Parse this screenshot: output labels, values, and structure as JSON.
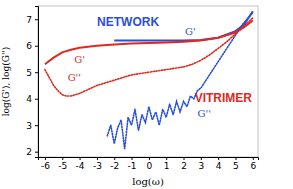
{
  "chart_data": {
    "type": "line",
    "x_label": "log(ω)",
    "y_label": "log(G'), log(G'')",
    "xlim": [
      -6.4,
      6.3
    ],
    "ylim": [
      1.8,
      7.5
    ],
    "xticks": [
      -6,
      -5,
      -4,
      -3,
      -2,
      -1,
      0,
      1,
      2,
      3,
      4,
      5,
      6
    ],
    "yticks": [
      2,
      3,
      4,
      5,
      6,
      7
    ],
    "series": [
      {
        "color": "#2b4fd8",
        "line_style": "solid",
        "x": [
          -2,
          -1,
          0,
          1,
          2,
          3,
          4,
          5,
          5.5,
          6
        ],
        "values": [
          6.2,
          6.2,
          6.2,
          6.2,
          6.2,
          6.22,
          6.3,
          6.55,
          6.8,
          7.3
        ]
      },
      {
        "color": "#2b4fd8",
        "line_style": "dotted",
        "x": [
          -2.4,
          -2.2,
          -2,
          -1.8,
          -1.6,
          -1.4,
          -1.2,
          -1,
          -0.8,
          -0.6,
          -0.4,
          -0.2,
          0,
          0.2,
          0.4,
          0.6,
          0.8,
          1,
          1.2,
          1.4,
          1.6,
          1.8,
          2,
          2.2,
          2.4,
          2.6,
          2.8,
          3,
          3.2,
          3.4,
          3.6,
          3.8,
          4,
          4.2,
          4.4,
          4.6,
          4.8,
          5,
          5.2,
          5.4,
          5.6,
          5.8,
          6
        ],
        "values": [
          2.6,
          3.0,
          2.3,
          2.9,
          3.2,
          2.1,
          3.3,
          3.0,
          3.6,
          2.8,
          3.4,
          3.1,
          3.7,
          3.2,
          3.5,
          3.0,
          3.6,
          3.3,
          3.8,
          3.4,
          3.9,
          3.5,
          3.9,
          3.7,
          4.1,
          4.0,
          4.3,
          4.4,
          4.6,
          4.8,
          5.0,
          5.2,
          5.4,
          5.6,
          5.8,
          6.0,
          6.2,
          6.4,
          6.6,
          6.8,
          6.95,
          7.1,
          7.25
        ]
      },
      {
        "color": "#e0281e",
        "line_style": "solid",
        "x": [
          -6,
          -5.5,
          -5,
          -4.5,
          -4,
          -3,
          -2,
          -1,
          0,
          1,
          2,
          3,
          4,
          5,
          5.5,
          6
        ],
        "values": [
          5.3,
          5.55,
          5.75,
          5.85,
          5.92,
          6.0,
          6.05,
          6.08,
          6.1,
          6.12,
          6.15,
          6.2,
          6.3,
          6.5,
          6.7,
          6.95
        ]
      },
      {
        "color": "#e0281e",
        "line_style": "dotted",
        "x": [
          -6,
          -5.75,
          -5.5,
          -5.25,
          -5,
          -4.75,
          -4.5,
          -4.25,
          -4,
          -3.5,
          -3,
          -2.5,
          -2,
          -1.5,
          -1,
          -0.5,
          0,
          0.5,
          1,
          1.5,
          2,
          2.5,
          3,
          3.5,
          4,
          4.5,
          5,
          5.5,
          6
        ],
        "values": [
          5.1,
          4.8,
          4.5,
          4.3,
          4.15,
          4.1,
          4.1,
          4.15,
          4.2,
          4.35,
          4.5,
          4.6,
          4.7,
          4.8,
          4.9,
          4.95,
          5.0,
          5.05,
          5.1,
          5.15,
          5.2,
          5.3,
          5.45,
          5.65,
          5.9,
          6.15,
          6.45,
          6.75,
          7.05
        ]
      }
    ],
    "annotations": [
      {
        "text": "NETWORK",
        "x": -1.2,
        "y": 6.85,
        "color": "#2b4fd8"
      },
      {
        "text": "G'",
        "x": 2.4,
        "y": 6.5,
        "color": "#2b4fd8"
      },
      {
        "text": "G''",
        "x": 3.2,
        "y": 3.4,
        "color": "#2b4fd8"
      },
      {
        "text": "VITRIMER",
        "x": 4.3,
        "y": 4.0,
        "color": "#e0281e"
      },
      {
        "text": "G'",
        "x": -4.0,
        "y": 5.45,
        "color": "#e0281e"
      },
      {
        "text": "G''",
        "x": -4.3,
        "y": 4.75,
        "color": "#e0281e"
      }
    ]
  }
}
